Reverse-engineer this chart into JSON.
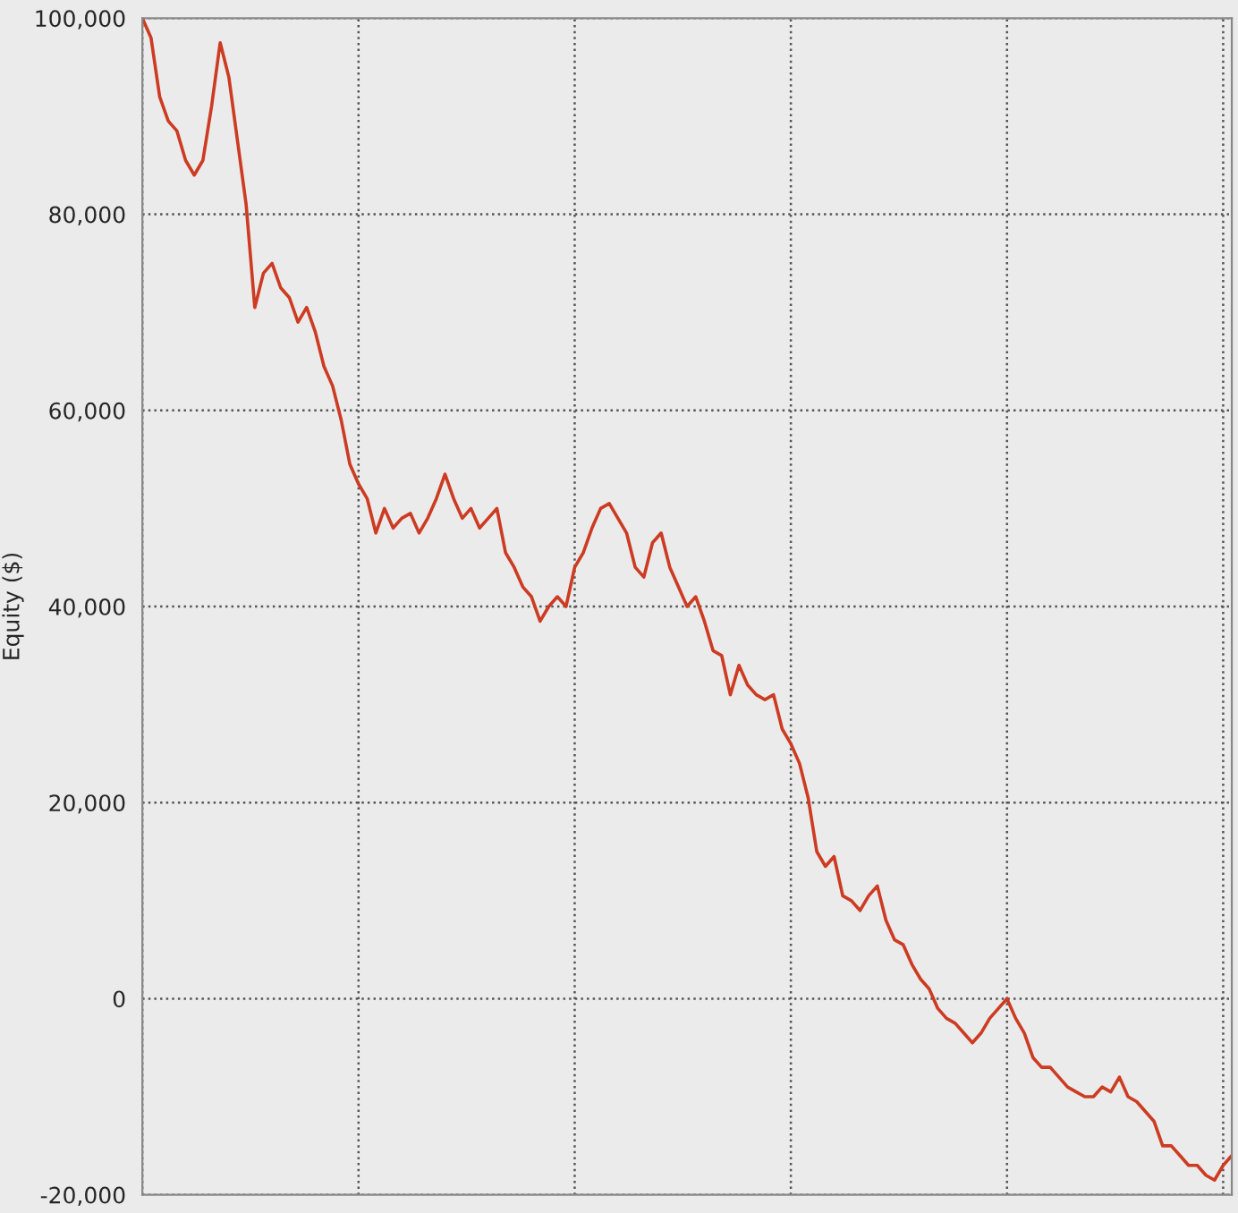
{
  "chart_data": {
    "type": "line",
    "ylabel": "Equity ($)",
    "categories": [
      null,
      null,
      null,
      null,
      null,
      null,
      null,
      null,
      null,
      null,
      null,
      null,
      null,
      null,
      null,
      null,
      null,
      null,
      null,
      null,
      null,
      null,
      null,
      null,
      null,
      null,
      null,
      null,
      null,
      null,
      null,
      null,
      null,
      null,
      null,
      null,
      null,
      null,
      null,
      null,
      null,
      null,
      null,
      null,
      null,
      null,
      null,
      null,
      null,
      null,
      null,
      null,
      null,
      null,
      null,
      null,
      null,
      null,
      null,
      null,
      null,
      null,
      null,
      null,
      null,
      null,
      null,
      null,
      null,
      null,
      null,
      null,
      null,
      null,
      null,
      null,
      null,
      null,
      null,
      null,
      null,
      null,
      null,
      null,
      null,
      null,
      null,
      null,
      null,
      null,
      null,
      null,
      null,
      null,
      null,
      null,
      null,
      null,
      null,
      null,
      null,
      null,
      null,
      null,
      null,
      null,
      null,
      null,
      null,
      null,
      null,
      null,
      null,
      null,
      null,
      null,
      null,
      null,
      null,
      null,
      null,
      null,
      null,
      null,
      null,
      null,
      null
    ],
    "series": [
      {
        "color": "#cc3b22",
        "values": [
          100000,
          98000,
          92000,
          89500,
          88500,
          85500,
          84000,
          85500,
          91000,
          97500,
          94000,
          87500,
          81000,
          70500,
          74000,
          75000,
          72500,
          71500,
          69000,
          70500,
          68000,
          64500,
          62500,
          59000,
          54500,
          52500,
          51000,
          47500,
          50000,
          48000,
          49000,
          49500,
          47500,
          49000,
          51000,
          53500,
          51000,
          49000,
          50000,
          48000,
          49000,
          50000,
          45500,
          44000,
          42000,
          41000,
          38500,
          40000,
          41000,
          40000,
          44000,
          45500,
          48000,
          50000,
          50500,
          49000,
          47500,
          44000,
          43000,
          46500,
          47500,
          44000,
          42000,
          40000,
          41000,
          38500,
          35500,
          35000,
          31000,
          34000,
          32000,
          31000,
          30500,
          31000,
          27500,
          26000,
          24000,
          20500,
          15000,
          13500,
          14500,
          10500,
          10000,
          9000,
          10500,
          11500,
          8000,
          6000,
          5500,
          3500,
          2000,
          1000,
          -1000,
          -2000,
          -2500,
          -3500,
          -4500,
          -3500,
          -2000,
          -1000,
          0,
          -2000,
          -3500,
          -6000,
          -7000,
          -7000,
          -8000,
          -9000,
          -9500,
          -10000,
          -10000,
          -9000,
          -9500,
          -8000,
          -10000,
          -10500,
          -11500,
          -12500,
          -15000,
          -15000,
          -16000,
          -17000,
          -17000,
          -18000,
          -18500,
          -17000,
          -16000
        ]
      }
    ],
    "ylim": [
      -20000,
      100000
    ],
    "yticks": [
      {
        "value": -20000,
        "label": "-20,000"
      },
      0,
      {
        "value": 20000,
        "label": "20,000"
      },
      {
        "value": 40000,
        "label": "40,000"
      },
      {
        "value": 60000,
        "label": "60,000"
      },
      {
        "value": 80000,
        "label": "80,000"
      },
      {
        "value": 100000,
        "label": "100,000"
      }
    ],
    "grid": true,
    "tick_labels": "y",
    "line_style": "solid",
    "marker": "none"
  }
}
